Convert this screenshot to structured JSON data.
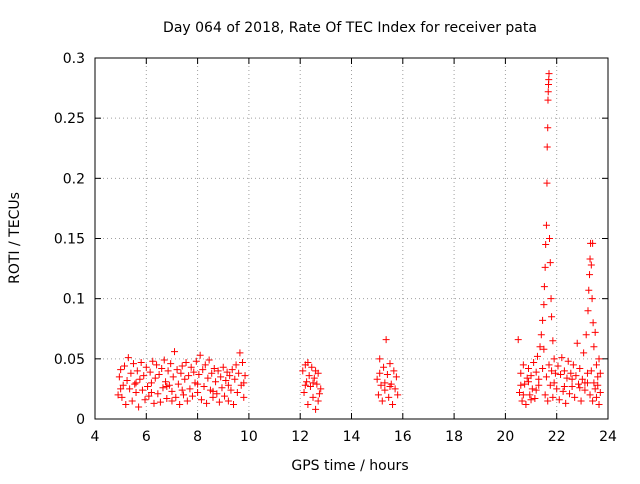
{
  "chart_data": {
    "type": "scatter",
    "title": "Day 064 of 2018, Rate Of TEC Index for receiver pata",
    "xlabel": "GPS time / hours",
    "ylabel": "ROTI / TECUs",
    "xlim": [
      4,
      24
    ],
    "ylim": [
      0,
      0.3
    ],
    "x_ticks": [
      "4",
      "6",
      "8",
      "10",
      "12",
      "14",
      "16",
      "18",
      "20",
      "22",
      "24"
    ],
    "y_ticks": [
      "0",
      "0.05",
      "0.1",
      "0.15",
      "0.2",
      "0.25",
      "0.3"
    ],
    "grid": true,
    "marker": "+",
    "color": "#ff0000",
    "series": [
      {
        "name": "ROTI",
        "points": [
          [
            4.9,
            0.02
          ],
          [
            4.95,
            0.035
          ],
          [
            5.0,
            0.041
          ],
          [
            5.05,
            0.018
          ],
          [
            5.1,
            0.028
          ],
          [
            5.15,
            0.044
          ],
          [
            5.2,
            0.012
          ],
          [
            5.25,
            0.032
          ],
          [
            5.3,
            0.051
          ],
          [
            5.35,
            0.025
          ],
          [
            5.4,
            0.038
          ],
          [
            5.45,
            0.015
          ],
          [
            5.5,
            0.046
          ],
          [
            5.55,
            0.029
          ],
          [
            5.6,
            0.022
          ],
          [
            5.65,
            0.04
          ],
          [
            5.7,
            0.01
          ],
          [
            5.75,
            0.033
          ],
          [
            5.8,
            0.047
          ],
          [
            5.85,
            0.024
          ],
          [
            5.9,
            0.036
          ],
          [
            5.95,
            0.016
          ],
          [
            6.0,
            0.043
          ],
          [
            6.05,
            0.027
          ],
          [
            6.1,
            0.019
          ],
          [
            6.15,
            0.039
          ],
          [
            6.2,
            0.03
          ],
          [
            6.25,
            0.048
          ],
          [
            6.3,
            0.013
          ],
          [
            6.35,
            0.034
          ],
          [
            6.4,
            0.045
          ],
          [
            6.45,
            0.021
          ],
          [
            6.5,
            0.037
          ],
          [
            6.55,
            0.014
          ],
          [
            6.6,
            0.042
          ],
          [
            6.65,
            0.026
          ],
          [
            6.7,
            0.049
          ],
          [
            6.75,
            0.031
          ],
          [
            6.8,
            0.017
          ],
          [
            6.85,
            0.04
          ],
          [
            6.9,
            0.028
          ],
          [
            6.95,
            0.046
          ],
          [
            7.0,
            0.023
          ],
          [
            7.05,
            0.035
          ],
          [
            7.1,
            0.056
          ],
          [
            7.15,
            0.018
          ],
          [
            7.2,
            0.041
          ],
          [
            7.25,
            0.029
          ],
          [
            7.3,
            0.012
          ],
          [
            7.35,
            0.038
          ],
          [
            7.4,
            0.044
          ],
          [
            7.45,
            0.02
          ],
          [
            7.5,
            0.033
          ],
          [
            7.55,
            0.047
          ],
          [
            7.6,
            0.015
          ],
          [
            7.65,
            0.036
          ],
          [
            7.7,
            0.025
          ],
          [
            7.75,
            0.043
          ],
          [
            7.8,
            0.019
          ],
          [
            7.85,
            0.039
          ],
          [
            7.9,
            0.03
          ],
          [
            7.95,
            0.048
          ],
          [
            8.0,
            0.022
          ],
          [
            8.05,
            0.037
          ],
          [
            8.1,
            0.053
          ],
          [
            8.15,
            0.016
          ],
          [
            8.2,
            0.041
          ],
          [
            8.25,
            0.027
          ],
          [
            8.3,
            0.045
          ],
          [
            8.35,
            0.013
          ],
          [
            8.4,
            0.034
          ],
          [
            8.45,
            0.049
          ],
          [
            8.5,
            0.024
          ],
          [
            8.55,
            0.038
          ],
          [
            8.6,
            0.018
          ],
          [
            8.65,
            0.042
          ],
          [
            8.7,
            0.031
          ],
          [
            8.75,
            0.021
          ],
          [
            8.8,
            0.04
          ],
          [
            8.85,
            0.014
          ],
          [
            8.9,
            0.035
          ],
          [
            8.95,
            0.026
          ],
          [
            9.0,
            0.043
          ],
          [
            9.05,
            0.019
          ],
          [
            9.1,
            0.032
          ],
          [
            9.15,
            0.039
          ],
          [
            9.2,
            0.015
          ],
          [
            9.25,
            0.036
          ],
          [
            9.3,
            0.024
          ],
          [
            9.35,
            0.041
          ],
          [
            9.4,
            0.012
          ],
          [
            9.45,
            0.033
          ],
          [
            9.5,
            0.045
          ],
          [
            9.55,
            0.022
          ],
          [
            9.6,
            0.038
          ],
          [
            9.65,
            0.055
          ],
          [
            9.7,
            0.028
          ],
          [
            9.75,
            0.047
          ],
          [
            9.8,
            0.018
          ],
          [
            9.85,
            0.036
          ],
          [
            5.0,
            0.025
          ],
          [
            5.6,
            0.03
          ],
          [
            6.2,
            0.022
          ],
          [
            6.8,
            0.027
          ],
          [
            7.4,
            0.024
          ],
          [
            8.0,
            0.029
          ],
          [
            8.6,
            0.023
          ],
          [
            9.2,
            0.028
          ],
          [
            9.8,
            0.03
          ],
          [
            7.0,
            0.015
          ],
          [
            12.1,
            0.04
          ],
          [
            12.15,
            0.022
          ],
          [
            12.2,
            0.045
          ],
          [
            12.25,
            0.031
          ],
          [
            12.3,
            0.012
          ],
          [
            12.35,
            0.036
          ],
          [
            12.4,
            0.027
          ],
          [
            12.45,
            0.043
          ],
          [
            12.5,
            0.018
          ],
          [
            12.55,
            0.034
          ],
          [
            12.6,
            0.008
          ],
          [
            12.65,
            0.029
          ],
          [
            12.7,
            0.038
          ],
          [
            12.75,
            0.021
          ],
          [
            12.8,
            0.025
          ],
          [
            12.3,
            0.047
          ],
          [
            12.5,
            0.03
          ],
          [
            12.7,
            0.015
          ],
          [
            12.2,
            0.028
          ],
          [
            12.6,
            0.04
          ],
          [
            15.0,
            0.033
          ],
          [
            15.05,
            0.02
          ],
          [
            15.1,
            0.05
          ],
          [
            15.15,
            0.028
          ],
          [
            15.2,
            0.015
          ],
          [
            15.25,
            0.043
          ],
          [
            15.3,
            0.024
          ],
          [
            15.35,
            0.066
          ],
          [
            15.4,
            0.037
          ],
          [
            15.45,
            0.018
          ],
          [
            15.5,
            0.046
          ],
          [
            15.55,
            0.029
          ],
          [
            15.6,
            0.012
          ],
          [
            15.65,
            0.04
          ],
          [
            15.7,
            0.025
          ],
          [
            15.75,
            0.035
          ],
          [
            15.8,
            0.02
          ],
          [
            15.3,
            0.03
          ],
          [
            15.5,
            0.027
          ],
          [
            15.1,
            0.038
          ],
          [
            20.5,
            0.066
          ],
          [
            20.55,
            0.022
          ],
          [
            20.6,
            0.038
          ],
          [
            20.65,
            0.015
          ],
          [
            20.7,
            0.045
          ],
          [
            20.75,
            0.029
          ],
          [
            20.8,
            0.012
          ],
          [
            20.85,
            0.034
          ],
          [
            20.9,
            0.042
          ],
          [
            20.95,
            0.02
          ],
          [
            21.0,
            0.036
          ],
          [
            21.05,
            0.025
          ],
          [
            21.1,
            0.047
          ],
          [
            21.15,
            0.017
          ],
          [
            21.2,
            0.039
          ],
          [
            21.25,
            0.052
          ],
          [
            21.3,
            0.028
          ],
          [
            21.35,
            0.06
          ],
          [
            21.4,
            0.07
          ],
          [
            21.45,
            0.082
          ],
          [
            21.5,
            0.095
          ],
          [
            21.52,
            0.11
          ],
          [
            21.55,
            0.126
          ],
          [
            21.57,
            0.145
          ],
          [
            21.6,
            0.161
          ],
          [
            21.62,
            0.196
          ],
          [
            21.63,
            0.226
          ],
          [
            21.65,
            0.242
          ],
          [
            21.66,
            0.265
          ],
          [
            21.67,
            0.272
          ],
          [
            21.68,
            0.278
          ],
          [
            21.69,
            0.282
          ],
          [
            21.7,
            0.287
          ],
          [
            21.72,
            0.15
          ],
          [
            21.75,
            0.13
          ],
          [
            21.78,
            0.1
          ],
          [
            21.8,
            0.085
          ],
          [
            21.85,
            0.065
          ],
          [
            21.9,
            0.05
          ],
          [
            21.95,
            0.038
          ],
          [
            21.55,
            0.02
          ],
          [
            21.6,
            0.035
          ],
          [
            21.65,
            0.015
          ],
          [
            21.7,
            0.045
          ],
          [
            21.75,
            0.028
          ],
          [
            21.8,
            0.04
          ],
          [
            21.85,
            0.018
          ],
          [
            21.9,
            0.03
          ],
          [
            21.5,
            0.058
          ],
          [
            21.45,
            0.042
          ],
          [
            22.0,
            0.025
          ],
          [
            22.05,
            0.044
          ],
          [
            22.1,
            0.016
          ],
          [
            22.15,
            0.037
          ],
          [
            22.2,
            0.051
          ],
          [
            22.25,
            0.023
          ],
          [
            22.3,
            0.04
          ],
          [
            22.35,
            0.013
          ],
          [
            22.4,
            0.034
          ],
          [
            22.45,
            0.048
          ],
          [
            22.5,
            0.021
          ],
          [
            22.55,
            0.038
          ],
          [
            22.6,
            0.027
          ],
          [
            22.65,
            0.045
          ],
          [
            22.7,
            0.018
          ],
          [
            22.75,
            0.036
          ],
          [
            22.8,
            0.063
          ],
          [
            22.85,
            0.029
          ],
          [
            22.9,
            0.042
          ],
          [
            22.95,
            0.015
          ],
          [
            23.0,
            0.033
          ],
          [
            23.05,
            0.055
          ],
          [
            23.1,
            0.024
          ],
          [
            23.15,
            0.07
          ],
          [
            23.2,
            0.038
          ],
          [
            23.22,
            0.09
          ],
          [
            23.25,
            0.107
          ],
          [
            23.28,
            0.12
          ],
          [
            23.3,
            0.133
          ],
          [
            23.32,
            0.146
          ],
          [
            23.35,
            0.128
          ],
          [
            23.38,
            0.1
          ],
          [
            23.4,
            0.146
          ],
          [
            23.42,
            0.08
          ],
          [
            23.45,
            0.06
          ],
          [
            23.5,
            0.072
          ],
          [
            23.55,
            0.045
          ],
          [
            23.6,
            0.035
          ],
          [
            23.65,
            0.05
          ],
          [
            23.7,
            0.022
          ],
          [
            23.3,
            0.02
          ],
          [
            23.35,
            0.04
          ],
          [
            23.4,
            0.015
          ],
          [
            23.45,
            0.03
          ],
          [
            23.5,
            0.025
          ],
          [
            23.55,
            0.018
          ],
          [
            23.6,
            0.028
          ],
          [
            23.65,
            0.012
          ],
          [
            23.7,
            0.038
          ],
          [
            23.2,
            0.03
          ],
          [
            20.6,
            0.028
          ],
          [
            20.9,
            0.031
          ],
          [
            21.2,
            0.024
          ],
          [
            22.3,
            0.027
          ],
          [
            22.6,
            0.033
          ],
          [
            22.9,
            0.026
          ],
          [
            23.1,
            0.03
          ],
          [
            20.7,
            0.02
          ],
          [
            21.0,
            0.016
          ],
          [
            21.3,
            0.033
          ]
        ]
      }
    ]
  }
}
